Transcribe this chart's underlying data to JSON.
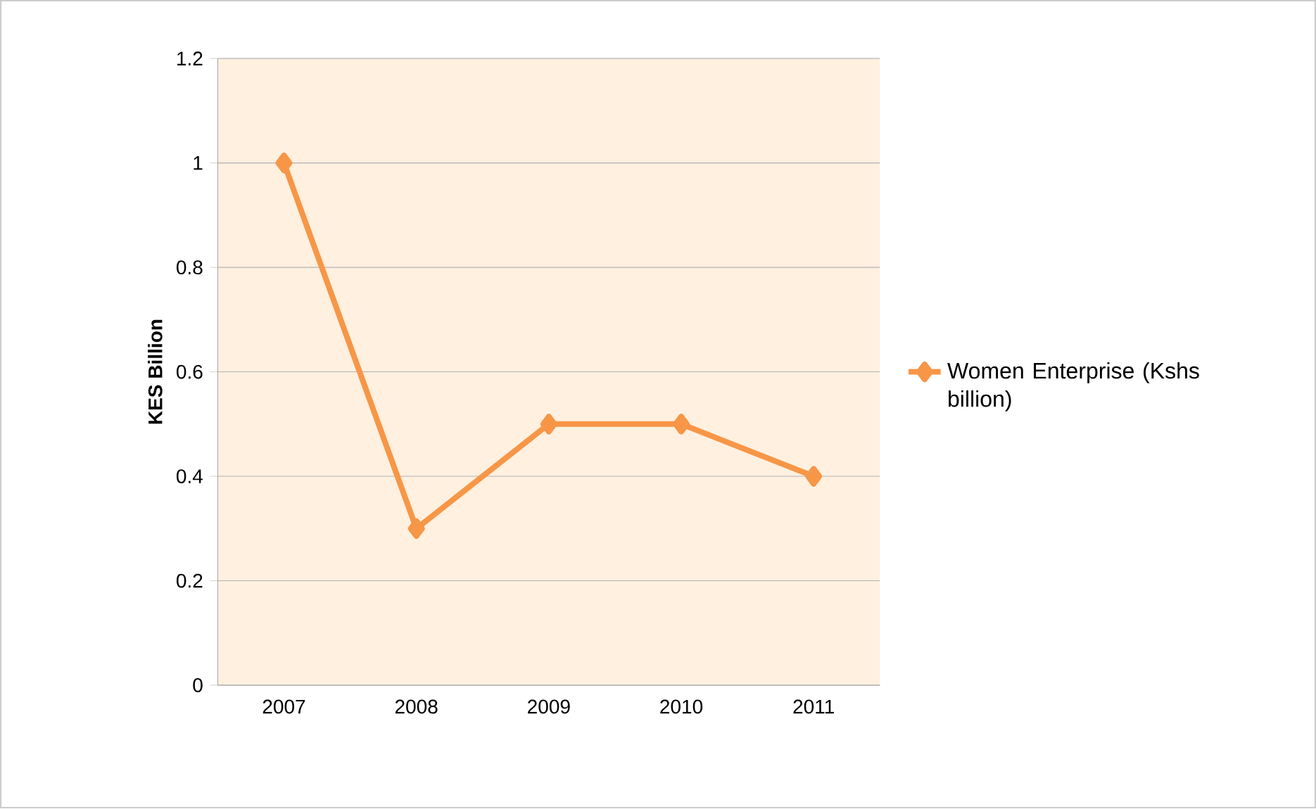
{
  "chart_data": {
    "type": "line",
    "ylabel": "KES Billion",
    "categories": [
      "2007",
      "2008",
      "2009",
      "2010",
      "2011"
    ],
    "series": [
      {
        "name": "Women Enterprise (Kshs billion)",
        "color": "#f79646",
        "values": [
          1.0,
          0.3,
          0.5,
          0.5,
          0.4
        ]
      }
    ],
    "ylim": [
      0,
      1.2
    ],
    "yticks": [
      0,
      0.2,
      0.4,
      0.6,
      0.8,
      1,
      1.2
    ],
    "grid": "y",
    "legend": "right",
    "marker": "diamond",
    "line_style": "solid"
  }
}
